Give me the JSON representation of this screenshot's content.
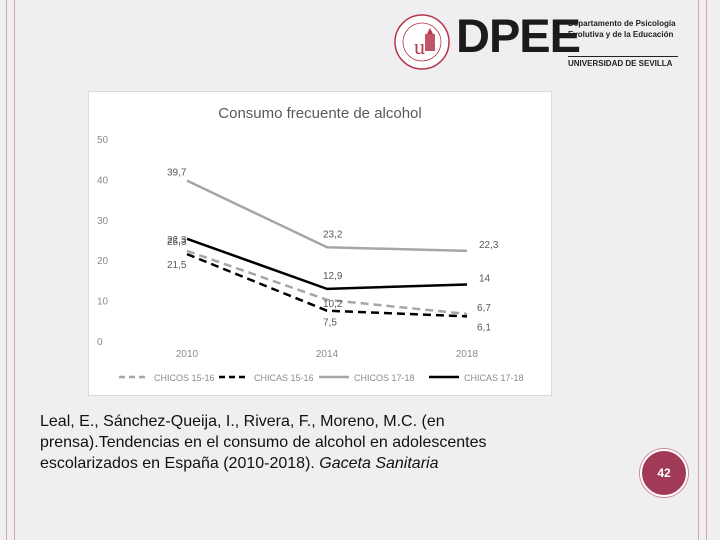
{
  "header": {
    "seal_text": "UNIVERSIDAD DE SEVILLA",
    "brand": "DPEE",
    "dept_line1": "Departamento de Psicología",
    "dept_line2": "Evolutiva y de la Educación",
    "university": "UNIVERSIDAD DE SEVILLA"
  },
  "citation": {
    "text": "Leal, E., Sánchez-Queija, I., Rivera, F., Moreno, M.C. (en prensa).Tendencias en el consumo de alcohol en adolescentes escolarizados en España (2010-2018).",
    "journal": "Gaceta Sanitaria"
  },
  "page_number": "42",
  "chart_data": {
    "type": "line",
    "title": "Consumo frecuente de alcohol",
    "categories": [
      "2010",
      "2014",
      "2018"
    ],
    "ylim": [
      0,
      50
    ],
    "yticks": [
      "0",
      "10",
      "20",
      "30",
      "40",
      "50"
    ],
    "grid": false,
    "legend_position": "bottom",
    "series": [
      {
        "name": "CHICOS 15-16",
        "values": [
          22.3,
          10.2,
          6.7
        ],
        "labels": [
          "22,3",
          "10,2",
          "6,7"
        ],
        "color": "#a6a6a6",
        "style": "dashed"
      },
      {
        "name": "CHICAS 15-16",
        "values": [
          21.5,
          7.5,
          6.1
        ],
        "labels": [
          "21,5",
          "7,5",
          "6,1"
        ],
        "color": "#000000",
        "style": "dashed"
      },
      {
        "name": "CHICOS 17-18",
        "values": [
          39.7,
          23.2,
          22.3
        ],
        "labels": [
          "39,7",
          "23,2",
          "22,3"
        ],
        "color": "#a6a6a6",
        "style": "solid"
      },
      {
        "name": "CHICAS 17-18",
        "values": [
          25.3,
          12.9,
          14
        ],
        "labels": [
          "25,3",
          "12,9",
          "14"
        ],
        "color": "#000000",
        "style": "solid"
      }
    ]
  }
}
